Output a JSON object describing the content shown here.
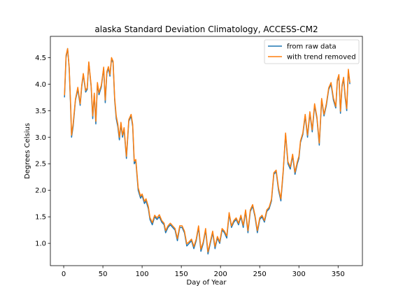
{
  "chart_data": {
    "type": "line",
    "title": "alaska Standard Deviation Climatology, ACCESS-CM2",
    "xlabel": "Day of Year",
    "ylabel": "Degrees Celsius",
    "xlim": [
      -17,
      381
    ],
    "ylim": [
      0.58,
      4.9
    ],
    "xticks": [
      0,
      50,
      100,
      150,
      200,
      250,
      300,
      350
    ],
    "yticks": [
      1.0,
      1.5,
      2.0,
      2.5,
      3.0,
      3.5,
      4.0,
      4.5
    ],
    "ytick_labels": [
      "1.0",
      "1.5",
      "2.0",
      "2.5",
      "3.0",
      "3.5",
      "4.0",
      "4.5"
    ],
    "grid": false,
    "legend": "top-right",
    "series": [
      {
        "name": "from raw data",
        "color": "#1f77b4",
        "x": [
          1,
          3,
          5,
          7,
          9,
          10,
          12,
          15,
          18,
          21,
          23,
          25,
          28,
          30,
          32,
          35,
          37,
          39,
          41,
          43,
          45,
          48,
          51,
          53,
          55,
          57,
          59,
          61,
          63,
          65,
          67,
          69,
          71,
          73,
          75,
          77,
          80,
          83,
          86,
          88,
          90,
          92,
          95,
          98,
          100,
          103,
          105,
          108,
          110,
          113,
          116,
          119,
          122,
          125,
          128,
          130,
          133,
          136,
          139,
          142,
          145,
          148,
          151,
          154,
          157,
          160,
          163,
          166,
          169,
          172,
          175,
          178,
          181,
          184,
          187,
          190,
          193,
          196,
          199,
          202,
          205,
          208,
          211,
          214,
          217,
          220,
          223,
          226,
          229,
          232,
          235,
          238,
          241,
          244,
          247,
          250,
          253,
          256,
          259,
          262,
          265,
          268,
          271,
          274,
          277,
          280,
          283,
          286,
          289,
          292,
          295,
          298,
          300,
          302,
          305,
          308,
          311,
          314,
          317,
          320,
          323,
          326,
          329,
          332,
          335,
          338,
          341,
          344,
          347,
          349,
          351,
          353,
          355,
          357,
          359,
          361,
          363,
          365
        ],
        "values": [
          3.75,
          4.5,
          4.67,
          4.3,
          3.5,
          3.0,
          3.2,
          3.7,
          3.9,
          3.6,
          3.95,
          4.18,
          3.85,
          3.9,
          4.4,
          3.95,
          3.35,
          3.8,
          3.25,
          4.0,
          3.8,
          3.95,
          4.3,
          3.65,
          4.2,
          4.3,
          4.15,
          4.48,
          4.4,
          3.7,
          3.35,
          3.2,
          2.95,
          3.25,
          3.0,
          3.15,
          2.6,
          3.3,
          3.4,
          3.2,
          2.5,
          2.55,
          2.0,
          1.85,
          1.9,
          1.75,
          1.8,
          1.65,
          1.45,
          1.35,
          1.5,
          1.45,
          1.5,
          1.4,
          1.35,
          1.2,
          1.3,
          1.35,
          1.3,
          1.25,
          1.05,
          1.3,
          1.3,
          1.2,
          0.95,
          1.0,
          1.05,
          0.9,
          1.05,
          1.3,
          0.85,
          1.0,
          1.25,
          0.8,
          1.0,
          1.2,
          0.9,
          1.1,
          1.0,
          1.25,
          1.2,
          1.1,
          1.55,
          1.3,
          1.4,
          1.45,
          1.35,
          1.5,
          1.3,
          1.6,
          1.2,
          1.6,
          1.7,
          1.5,
          1.2,
          1.45,
          1.5,
          1.4,
          1.6,
          1.65,
          1.8,
          2.3,
          2.35,
          2.0,
          1.8,
          2.35,
          3.05,
          2.5,
          2.4,
          2.65,
          2.3,
          2.5,
          2.6,
          2.9,
          3.05,
          3.4,
          3.0,
          3.45,
          3.1,
          3.6,
          3.35,
          2.85,
          3.7,
          3.4,
          3.6,
          3.9,
          4.0,
          3.7,
          3.55,
          4.05,
          4.15,
          3.45,
          3.95,
          4.1,
          3.75,
          3.5,
          4.25,
          4.0
        ]
      },
      {
        "name": "with trend removed",
        "color": "#ff7f0e",
        "x": [
          1,
          3,
          5,
          7,
          9,
          10,
          12,
          15,
          18,
          21,
          23,
          25,
          28,
          30,
          32,
          35,
          37,
          39,
          41,
          43,
          45,
          48,
          51,
          53,
          55,
          57,
          59,
          61,
          63,
          65,
          67,
          69,
          71,
          73,
          75,
          77,
          80,
          83,
          86,
          88,
          90,
          92,
          95,
          98,
          100,
          103,
          105,
          108,
          110,
          113,
          116,
          119,
          122,
          125,
          128,
          130,
          133,
          136,
          139,
          142,
          145,
          148,
          151,
          154,
          157,
          160,
          163,
          166,
          169,
          172,
          175,
          178,
          181,
          184,
          187,
          190,
          193,
          196,
          199,
          202,
          205,
          208,
          211,
          214,
          217,
          220,
          223,
          226,
          229,
          232,
          235,
          238,
          241,
          244,
          247,
          250,
          253,
          256,
          259,
          262,
          265,
          268,
          271,
          274,
          277,
          280,
          283,
          286,
          289,
          292,
          295,
          298,
          300,
          302,
          305,
          308,
          311,
          314,
          317,
          320,
          323,
          326,
          329,
          332,
          335,
          338,
          341,
          344,
          347,
          349,
          351,
          353,
          355,
          357,
          359,
          361,
          363,
          365
        ],
        "values": [
          3.79,
          4.54,
          4.67,
          4.32,
          3.55,
          3.04,
          3.25,
          3.72,
          3.94,
          3.63,
          3.98,
          4.2,
          3.88,
          3.93,
          4.42,
          3.98,
          3.4,
          3.83,
          3.3,
          4.03,
          3.84,
          3.98,
          4.32,
          3.7,
          4.23,
          4.33,
          4.18,
          4.5,
          4.43,
          3.74,
          3.4,
          3.25,
          3.0,
          3.28,
          3.04,
          3.18,
          2.64,
          3.33,
          3.43,
          3.24,
          2.55,
          2.58,
          2.05,
          1.89,
          1.93,
          1.79,
          1.84,
          1.69,
          1.49,
          1.39,
          1.53,
          1.48,
          1.54,
          1.43,
          1.38,
          1.24,
          1.33,
          1.38,
          1.33,
          1.28,
          1.09,
          1.33,
          1.33,
          1.23,
          0.99,
          1.03,
          1.08,
          0.94,
          1.08,
          1.33,
          0.89,
          1.03,
          1.28,
          0.84,
          1.03,
          1.23,
          0.94,
          1.13,
          1.03,
          1.28,
          1.23,
          1.14,
          1.58,
          1.33,
          1.43,
          1.48,
          1.38,
          1.53,
          1.34,
          1.63,
          1.24,
          1.63,
          1.73,
          1.53,
          1.24,
          1.48,
          1.53,
          1.43,
          1.63,
          1.68,
          1.83,
          2.33,
          2.38,
          2.04,
          1.84,
          2.38,
          3.08,
          2.54,
          2.44,
          2.68,
          2.34,
          2.54,
          2.64,
          2.93,
          3.08,
          3.43,
          3.04,
          3.48,
          3.14,
          3.63,
          3.38,
          2.89,
          3.73,
          3.43,
          3.63,
          3.93,
          4.03,
          3.74,
          3.58,
          4.08,
          4.18,
          3.49,
          3.98,
          4.13,
          3.79,
          3.54,
          4.28,
          4.03
        ]
      }
    ]
  }
}
